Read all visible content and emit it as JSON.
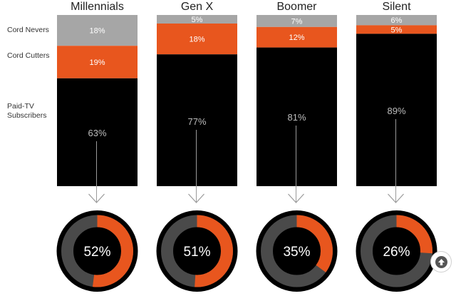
{
  "chart_data": {
    "type": "bar",
    "stacked": true,
    "categories": [
      "Millennials",
      "Gen X",
      "Boomer",
      "Silent"
    ],
    "series": [
      {
        "name": "Paid-TV Subscribers",
        "values": [
          63,
          77,
          81,
          89
        ],
        "labels": [
          "63%",
          "77%",
          "81%",
          "89%"
        ]
      },
      {
        "name": "Cord Cutters",
        "values": [
          19,
          18,
          12,
          5
        ],
        "labels": [
          "19%",
          "18%",
          "12%",
          "5%"
        ]
      },
      {
        "name": "Cord Nevers",
        "values": [
          18,
          5,
          7,
          6
        ],
        "labels": [
          "18%",
          "5%",
          "7%",
          "6%"
        ]
      }
    ],
    "row_labels": {
      "cord_nevers": "Cord Nevers",
      "cord_cutters": "Cord Cutters",
      "paid_tv": "Paid-TV Subscribers"
    },
    "donuts": {
      "values": [
        52,
        51,
        35,
        26
      ],
      "labels": [
        "52%",
        "51%",
        "35%",
        "26%"
      ]
    },
    "colors": {
      "paid_tv": "#000000",
      "cord_cutters": "#e8561e",
      "cord_nevers": "#a6a6a6",
      "donut_track": "#4a4a4a",
      "donut_fill": "#e8561e",
      "arrow": "#9a9a9a"
    }
  },
  "ui": {
    "scroll_top_icon": "arrow-up-icon"
  }
}
